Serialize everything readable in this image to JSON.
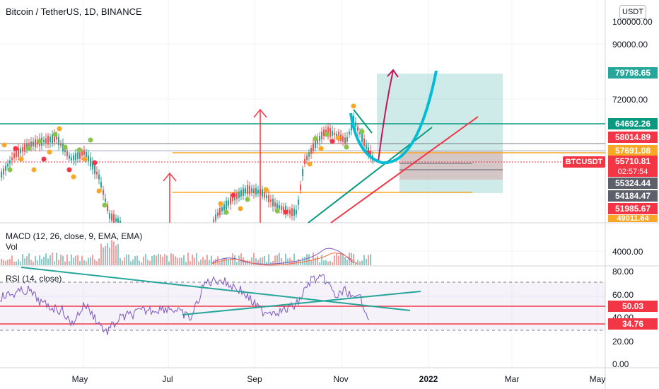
{
  "header": {
    "symbol_title": "Bitcoin / TetherUS, 1D, BINANCE",
    "currency_button": "USDT"
  },
  "indicators": {
    "macd_label": "MACD (12, 26, close, 9, EMA, EMA)",
    "vol_label": "Vol",
    "rsi_label": "RSI (14, close)"
  },
  "symbol_tag": "BTCUSDT",
  "countdown": "02:57:54",
  "price_badges": [
    {
      "text": "79798.65",
      "color": "#26a69a"
    },
    {
      "text": "64692.26",
      "color": "#089981"
    },
    {
      "text": "58014.89",
      "color": "#f23645"
    },
    {
      "text": "57691.08",
      "color": "#f9a825"
    },
    {
      "text": "55710.81",
      "color": "#f23645"
    },
    {
      "text": "55324.44",
      "color": "#5d606b"
    },
    {
      "text": "54184.47",
      "color": "#5d606b"
    },
    {
      "text": "51985.67",
      "color": "#f23645"
    },
    {
      "text": "49011.64",
      "color": "#f9a825"
    }
  ],
  "rsi_badges": [
    {
      "text": "50.03",
      "color": "#f23645"
    },
    {
      "text": "34.76",
      "color": "#f23645"
    }
  ],
  "chart_data": [
    {
      "type": "candlestick",
      "title": "Bitcoin / TetherUS, 1D, BINANCE",
      "y_ticks": [
        "100000.00",
        "90000.00",
        "72000.00"
      ],
      "x_ticks": [
        "May",
        "Jul",
        "Sep",
        "Nov",
        "2022",
        "Mar",
        "May"
      ],
      "horizontal_levels": [
        64692.26,
        58014.89,
        57691.08,
        55710.81,
        55324.44,
        54184.47,
        51985.67,
        49011.64
      ],
      "target_level": 79798.65,
      "last_price": 55710.81
    },
    {
      "type": "bar",
      "title": "MACD (12, 26, close, 9, EMA, EMA)",
      "y_ticks": [
        "4000.00"
      ],
      "volume_label": "Vol"
    },
    {
      "type": "line",
      "title": "RSI (14, close)",
      "y_ticks": [
        "80.00",
        "60.00",
        "40.00",
        "20.00",
        "0.00"
      ],
      "levels": [
        50.03,
        34.76
      ],
      "band": [
        30,
        70
      ],
      "last_value": 34.76
    }
  ]
}
